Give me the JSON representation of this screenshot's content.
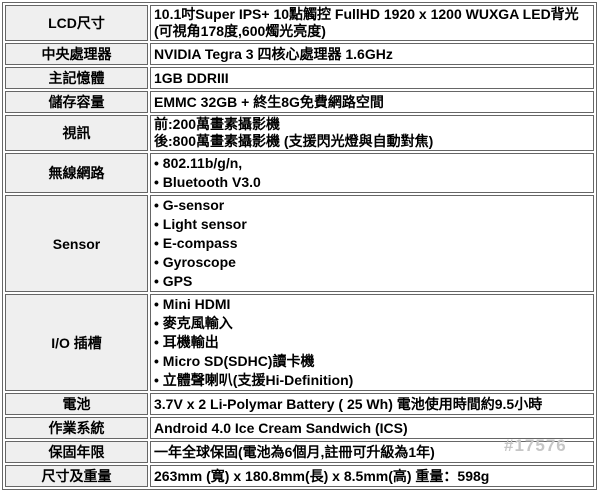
{
  "colors": {
    "border": "#666666",
    "label_bg": "#efefef",
    "text": "#000000",
    "watermark": "#c6c6c6"
  },
  "watermark": "#17576",
  "table": {
    "rows": [
      {
        "label": "LCD尺寸",
        "bullets": false,
        "lines": [
          "10.1吋Super IPS+ 10點觸控 FullHD 1920 x 1200 WUXGA LED背光",
          "(可視角178度,600燭光亮度)"
        ]
      },
      {
        "label": "中央處理器",
        "bullets": false,
        "lines": [
          "NVIDIA Tegra 3 四核心處理器 1.6GHz"
        ]
      },
      {
        "label": "主記憶體",
        "bullets": false,
        "lines": [
          "1GB DDRIII"
        ]
      },
      {
        "label": "儲存容量",
        "bullets": false,
        "lines": [
          "EMMC 32GB + 終生8G免費網路空間"
        ]
      },
      {
        "label": "視訊",
        "bullets": false,
        "lines": [
          "前:200萬畫素攝影機",
          "後:800萬畫素攝影機 (支援閃光燈與自動對焦)"
        ]
      },
      {
        "label": "無線網路",
        "bullets": true,
        "lines": [
          "• 802.11b/g/n,",
          "• Bluetooth V3.0"
        ]
      },
      {
        "label": "Sensor",
        "bullets": true,
        "lines": [
          "• G-sensor",
          "• Light sensor",
          "• E-compass",
          "• Gyroscope",
          "• GPS"
        ]
      },
      {
        "label": "I/O 插槽",
        "bullets": true,
        "lines": [
          "• Mini HDMI",
          "• 麥克風輸入",
          "• 耳機輸出",
          "• Micro SD(SDHC)讀卡機",
          "• 立體聲喇叭(支援Hi-Definition)"
        ]
      },
      {
        "label": "電池",
        "bullets": false,
        "lines": [
          "3.7V x 2 Li-Polymar Battery ( 25 Wh) 電池使用時間約9.5小時"
        ]
      },
      {
        "label": "作業系統",
        "bullets": false,
        "lines": [
          "Android 4.0 Ice Cream Sandwich (ICS)"
        ]
      },
      {
        "label": "保固年限",
        "bullets": false,
        "lines": [
          "一年全球保固(電池為6個月,註冊可升級為1年)"
        ]
      },
      {
        "label": "尺寸及重量",
        "bullets": false,
        "lines": [
          "263mm (寬) x 180.8mm(長) x 8.5mm(高) 重量：598g"
        ]
      }
    ]
  }
}
